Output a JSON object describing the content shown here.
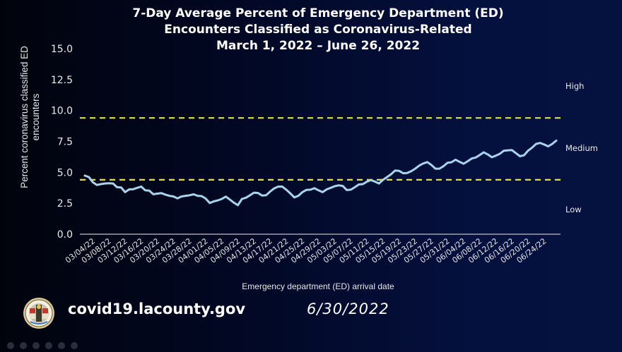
{
  "title": {
    "line1": "7-Day Average Percent of Emergency Department (ED)",
    "line2": "Encounters Classified as Coronavirus-Related",
    "line3": "March 1, 2022 – June 26, 2022"
  },
  "footer": {
    "url": "covid19.lacounty.gov",
    "date": "6/30/2022",
    "seal_icon": "la-county-seal-icon"
  },
  "colors": {
    "line": "#a8d4ec",
    "threshold": "#e6df3a",
    "axis": "#a0a0a8",
    "background_left": "#01030c",
    "background_right": "#051240"
  },
  "chart_data": {
    "type": "line",
    "title": "7-Day Average Percent of Emergency Department (ED) Encounters Classified as Coronavirus-Related, March 1, 2022 – June 26, 2022",
    "xlabel": "Emergency department (ED) arrival date",
    "ylabel": "Percent coronavirus classified ED encounters",
    "ylim": [
      0,
      15
    ],
    "yticks": [
      "0.0",
      "2.5",
      "5.0",
      "7.5",
      "10.0",
      "12.5",
      "15.0"
    ],
    "ytick_values": [
      0,
      2.5,
      5,
      7.5,
      10,
      12.5,
      15
    ],
    "x_start_date": "03/01/22",
    "x_end_date": "06/26/22",
    "xtick_labels": [
      "03/04/22",
      "03/08/22",
      "03/12/22",
      "03/16/22",
      "03/20/22",
      "03/24/22",
      "03/28/22",
      "04/01/22",
      "04/05/22",
      "04/09/22",
      "04/13/22",
      "04/17/22",
      "04/21/22",
      "04/25/22",
      "04/29/22",
      "05/03/22",
      "05/07/22",
      "05/11/22",
      "05/15/22",
      "05/19/22",
      "05/23/22",
      "05/27/22",
      "05/31/22",
      "06/04/22",
      "06/08/22",
      "06/12/22",
      "06/16/22",
      "06/20/22",
      "06/24/22"
    ],
    "xtick_day_offsets": [
      3,
      7,
      11,
      15,
      19,
      23,
      27,
      31,
      35,
      39,
      43,
      47,
      51,
      55,
      59,
      63,
      67,
      71,
      75,
      79,
      83,
      87,
      91,
      95,
      99,
      103,
      107,
      111,
      115
    ],
    "grid": false,
    "thresholds": [
      {
        "name": "upper",
        "value": 9.4,
        "style": "dashed"
      },
      {
        "name": "lower",
        "value": 4.4,
        "style": "dashed"
      }
    ],
    "zone_labels": [
      {
        "label": "High",
        "value": 12.5
      },
      {
        "label": "Medium",
        "value": 7.1
      },
      {
        "label": "Low",
        "value": 2.0
      }
    ],
    "series": [
      {
        "name": "7-day average percent",
        "values": [
          4.74,
          4.62,
          4.2,
          3.98,
          4.05,
          4.1,
          4.12,
          4.1,
          3.8,
          3.78,
          3.4,
          3.62,
          3.64,
          3.75,
          3.85,
          3.55,
          3.52,
          3.23,
          3.28,
          3.32,
          3.2,
          3.1,
          3.05,
          2.9,
          3.05,
          3.1,
          3.15,
          3.23,
          3.1,
          3.08,
          2.88,
          2.52,
          2.65,
          2.73,
          2.85,
          3.04,
          2.8,
          2.55,
          2.35,
          2.85,
          2.95,
          3.15,
          3.36,
          3.33,
          3.12,
          3.15,
          3.45,
          3.7,
          3.85,
          3.85,
          3.6,
          3.3,
          2.98,
          3.1,
          3.4,
          3.58,
          3.6,
          3.72,
          3.55,
          3.4,
          3.62,
          3.75,
          3.88,
          3.95,
          3.9,
          3.57,
          3.6,
          3.8,
          4.02,
          4.05,
          4.25,
          4.38,
          4.25,
          4.1,
          4.4,
          4.62,
          4.85,
          5.15,
          5.12,
          4.93,
          4.95,
          5.1,
          5.3,
          5.55,
          5.72,
          5.83,
          5.6,
          5.3,
          5.3,
          5.5,
          5.78,
          5.82,
          6.02,
          5.85,
          5.7,
          5.9,
          6.12,
          6.2,
          6.4,
          6.62,
          6.45,
          6.22,
          6.35,
          6.5,
          6.75,
          6.78,
          6.8,
          6.55,
          6.3,
          6.38,
          6.75,
          7.0,
          7.3,
          7.38,
          7.25,
          7.1,
          7.3,
          7.57
        ]
      }
    ]
  }
}
